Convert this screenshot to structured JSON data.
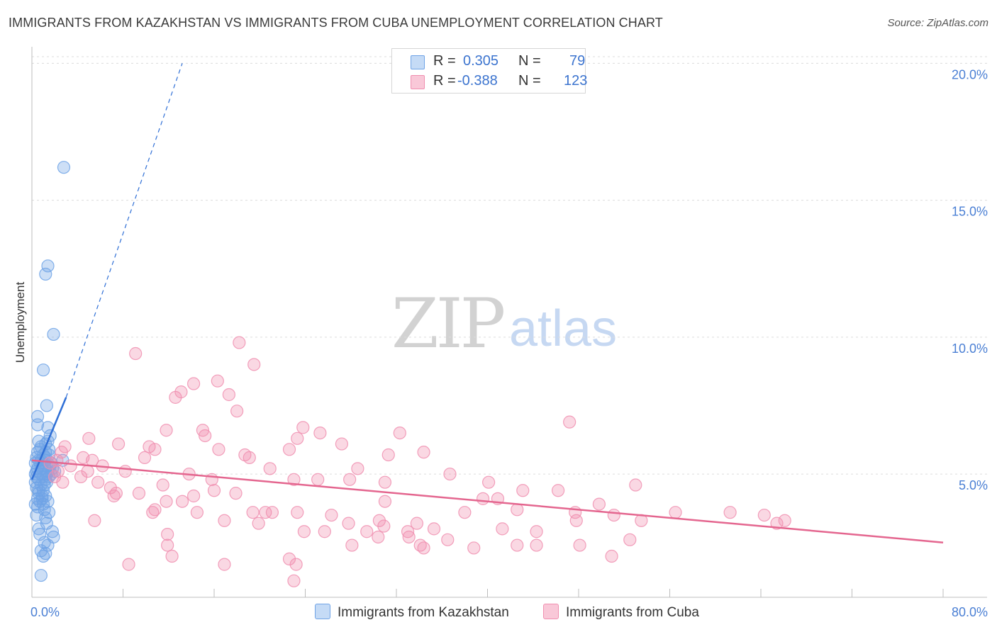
{
  "title": "IMMIGRANTS FROM KAZAKHSTAN VS IMMIGRANTS FROM CUBA UNEMPLOYMENT CORRELATION CHART",
  "source": "Source: ZipAtlas.com",
  "watermark": {
    "zip": "ZIP",
    "atlas": "atlas"
  },
  "colors": {
    "blue": "#6fa3e6",
    "blue_line": "#2f6fd6",
    "pink": "#f08fb0",
    "pink_line": "#e4668f"
  },
  "legend": {
    "r_label": "R =",
    "n_label": "N =",
    "series": [
      {
        "r": "0.305",
        "n": "79"
      },
      {
        "r": "-0.388",
        "n": "123"
      }
    ]
  },
  "bottom_legend": [
    "Immigrants from Kazakhstan",
    "Immigrants from Cuba"
  ],
  "chart_data": {
    "type": "scatter",
    "xlabel": "",
    "ylabel": "Unemployment",
    "xlim": [
      0,
      80
    ],
    "ylim": [
      0.5,
      20.5
    ],
    "y_ticks": [
      {
        "value": 5,
        "label": "5.0%"
      },
      {
        "value": 10,
        "label": "10.0%"
      },
      {
        "value": 15,
        "label": "15.0%"
      },
      {
        "value": 20,
        "label": "20.0%"
      }
    ],
    "x_tick_labels": {
      "min": "0.0%",
      "max": "80.0%"
    },
    "x_minor_ticks": [
      8,
      16,
      24,
      32,
      40,
      48,
      56,
      64,
      72,
      80
    ],
    "series": [
      {
        "name": "Immigrants from Kazakhstan",
        "color": "blue",
        "r": 0.305,
        "n": 79,
        "trend_solid": {
          "x": [
            0.0,
            3.0
          ],
          "y": [
            4.8,
            7.8
          ]
        },
        "trend_dashed": {
          "x": [
            3.0,
            13.2
          ],
          "y": [
            7.8,
            20.0
          ]
        },
        "points": [
          [
            2.8,
            16.2
          ],
          [
            1.4,
            12.6
          ],
          [
            1.2,
            12.3
          ],
          [
            1.9,
            10.1
          ],
          [
            1.0,
            8.8
          ],
          [
            1.3,
            7.5
          ],
          [
            0.5,
            7.1
          ],
          [
            1.4,
            6.7
          ],
          [
            1.6,
            6.4
          ],
          [
            0.6,
            6.2
          ],
          [
            1.2,
            6.1
          ],
          [
            0.7,
            5.9
          ],
          [
            1.2,
            5.8
          ],
          [
            1.0,
            5.7
          ],
          [
            1.5,
            5.7
          ],
          [
            0.4,
            5.6
          ],
          [
            0.8,
            5.5
          ],
          [
            1.2,
            5.5
          ],
          [
            2.7,
            5.5
          ],
          [
            0.3,
            5.4
          ],
          [
            0.7,
            5.4
          ],
          [
            1.1,
            5.3
          ],
          [
            1.6,
            5.3
          ],
          [
            0.5,
            5.2
          ],
          [
            0.9,
            5.2
          ],
          [
            1.4,
            5.1
          ],
          [
            2.0,
            5.1
          ],
          [
            0.3,
            5.0
          ],
          [
            0.8,
            5.0
          ],
          [
            1.3,
            5.0
          ],
          [
            1.7,
            5.0
          ],
          [
            0.4,
            4.9
          ],
          [
            1.0,
            4.9
          ],
          [
            1.5,
            4.9
          ],
          [
            0.6,
            4.8
          ],
          [
            1.2,
            4.8
          ],
          [
            0.3,
            4.7
          ],
          [
            0.8,
            4.6
          ],
          [
            0.4,
            4.5
          ],
          [
            1.0,
            4.4
          ],
          [
            0.6,
            4.3
          ],
          [
            1.2,
            4.2
          ],
          [
            0.5,
            4.1
          ],
          [
            0.9,
            4.1
          ],
          [
            1.4,
            4.0
          ],
          [
            0.7,
            4.0
          ],
          [
            0.3,
            3.9
          ],
          [
            1.0,
            3.9
          ],
          [
            0.5,
            3.8
          ],
          [
            1.1,
            3.7
          ],
          [
            1.5,
            3.6
          ],
          [
            0.4,
            3.5
          ],
          [
            1.3,
            3.2
          ],
          [
            0.6,
            3.0
          ],
          [
            1.8,
            2.9
          ],
          [
            1.9,
            2.7
          ],
          [
            1.1,
            2.5
          ],
          [
            1.4,
            2.4
          ],
          [
            0.8,
            2.2
          ],
          [
            1.2,
            2.1
          ],
          [
            1.0,
            2.0
          ],
          [
            0.8,
            1.3
          ],
          [
            1.2,
            5.6
          ],
          [
            0.9,
            5.3
          ],
          [
            0.5,
            5.8
          ],
          [
            1.7,
            5.4
          ],
          [
            0.6,
            4.4
          ],
          [
            1.1,
            4.6
          ],
          [
            0.4,
            5.1
          ],
          [
            1.3,
            4.7
          ],
          [
            0.8,
            6.0
          ],
          [
            1.5,
            5.9
          ],
          [
            0.5,
            6.8
          ],
          [
            0.9,
            4.2
          ],
          [
            1.2,
            3.4
          ],
          [
            0.7,
            2.8
          ],
          [
            1.4,
            6.2
          ],
          [
            1.8,
            5.2
          ],
          [
            0.6,
            5.5
          ]
        ]
      },
      {
        "name": "Immigrants from Cuba",
        "color": "pink",
        "r": -0.388,
        "n": 123,
        "trend_solid": {
          "x": [
            0.0,
            80.0
          ],
          "y": [
            5.5,
            2.5
          ]
        },
        "points": [
          [
            18.2,
            9.8
          ],
          [
            9.1,
            9.4
          ],
          [
            19.5,
            9.0
          ],
          [
            16.3,
            8.4
          ],
          [
            14.2,
            8.3
          ],
          [
            13.1,
            8.0
          ],
          [
            17.3,
            7.9
          ],
          [
            12.6,
            7.8
          ],
          [
            18.0,
            7.3
          ],
          [
            47.2,
            6.9
          ],
          [
            23.8,
            6.7
          ],
          [
            15.0,
            6.6
          ],
          [
            11.8,
            6.6
          ],
          [
            25.3,
            6.5
          ],
          [
            32.3,
            6.5
          ],
          [
            15.2,
            6.4
          ],
          [
            5.0,
            6.3
          ],
          [
            23.3,
            6.3
          ],
          [
            7.6,
            6.1
          ],
          [
            27.2,
            6.1
          ],
          [
            10.3,
            6.0
          ],
          [
            2.9,
            6.0
          ],
          [
            16.4,
            5.9
          ],
          [
            22.6,
            5.9
          ],
          [
            10.8,
            5.9
          ],
          [
            34.4,
            5.8
          ],
          [
            2.6,
            5.8
          ],
          [
            31.3,
            5.7
          ],
          [
            18.7,
            5.7
          ],
          [
            19.1,
            5.6
          ],
          [
            9.9,
            5.6
          ],
          [
            4.5,
            5.6
          ],
          [
            2.2,
            5.5
          ],
          [
            5.3,
            5.5
          ],
          [
            1.6,
            5.4
          ],
          [
            3.4,
            5.3
          ],
          [
            6.2,
            5.3
          ],
          [
            28.6,
            5.2
          ],
          [
            20.9,
            5.2
          ],
          [
            2.3,
            5.1
          ],
          [
            4.9,
            5.1
          ],
          [
            8.2,
            5.1
          ],
          [
            13.8,
            5.0
          ],
          [
            36.7,
            5.0
          ],
          [
            2.0,
            4.9
          ],
          [
            4.3,
            4.9
          ],
          [
            23.0,
            4.8
          ],
          [
            15.8,
            4.8
          ],
          [
            25.1,
            4.8
          ],
          [
            2.7,
            4.7
          ],
          [
            5.8,
            4.7
          ],
          [
            31.0,
            4.7
          ],
          [
            40.1,
            4.7
          ],
          [
            53.0,
            4.6
          ],
          [
            11.5,
            4.6
          ],
          [
            6.9,
            4.5
          ],
          [
            16.0,
            4.4
          ],
          [
            43.1,
            4.4
          ],
          [
            46.2,
            4.4
          ],
          [
            7.4,
            4.3
          ],
          [
            9.4,
            4.3
          ],
          [
            17.9,
            4.3
          ],
          [
            14.2,
            4.2
          ],
          [
            7.2,
            4.2
          ],
          [
            40.9,
            4.1
          ],
          [
            31.0,
            4.0
          ],
          [
            39.6,
            4.1
          ],
          [
            13.2,
            4.0
          ],
          [
            11.8,
            4.0
          ],
          [
            49.8,
            3.9
          ],
          [
            23.3,
            3.6
          ],
          [
            42.6,
            3.7
          ],
          [
            10.8,
            3.7
          ],
          [
            38.0,
            3.6
          ],
          [
            56.5,
            3.6
          ],
          [
            61.3,
            3.6
          ],
          [
            10.6,
            3.6
          ],
          [
            19.4,
            3.6
          ],
          [
            14.5,
            3.6
          ],
          [
            21.1,
            3.6
          ],
          [
            20.5,
            3.6
          ],
          [
            26.3,
            3.5
          ],
          [
            51.1,
            3.5
          ],
          [
            64.3,
            3.5
          ],
          [
            47.7,
            3.6
          ],
          [
            5.5,
            3.3
          ],
          [
            16.9,
            3.3
          ],
          [
            27.8,
            3.2
          ],
          [
            30.5,
            3.3
          ],
          [
            53.5,
            3.3
          ],
          [
            65.4,
            3.2
          ],
          [
            19.9,
            3.2
          ],
          [
            33.8,
            3.2
          ],
          [
            47.8,
            3.3
          ],
          [
            66.1,
            3.3
          ],
          [
            30.9,
            3.1
          ],
          [
            35.3,
            3.0
          ],
          [
            41.3,
            3.0
          ],
          [
            44.3,
            2.9
          ],
          [
            33.0,
            2.9
          ],
          [
            11.9,
            2.8
          ],
          [
            23.9,
            2.9
          ],
          [
            29.4,
            2.9
          ],
          [
            30.4,
            2.7
          ],
          [
            33.1,
            2.7
          ],
          [
            36.5,
            2.6
          ],
          [
            42.6,
            2.4
          ],
          [
            11.9,
            2.4
          ],
          [
            28.1,
            2.4
          ],
          [
            44.3,
            2.4
          ],
          [
            48.1,
            2.4
          ],
          [
            38.8,
            2.3
          ],
          [
            34.4,
            2.3
          ],
          [
            34.1,
            2.4
          ],
          [
            12.3,
            2.0
          ],
          [
            22.6,
            1.9
          ],
          [
            50.9,
            2.0
          ],
          [
            8.5,
            1.7
          ],
          [
            16.9,
            1.7
          ],
          [
            23.2,
            1.7
          ],
          [
            23.0,
            1.1
          ],
          [
            27.9,
            4.8
          ],
          [
            25.7,
            2.9
          ],
          [
            52.5,
            2.6
          ]
        ]
      }
    ]
  }
}
